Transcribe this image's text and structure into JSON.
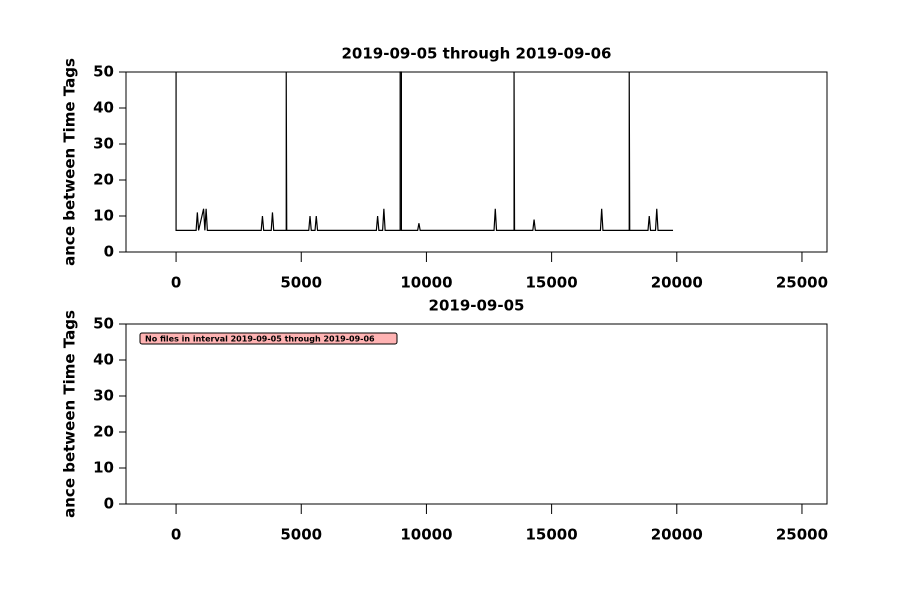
{
  "chart_data": [
    {
      "type": "line",
      "title": "2019-09-05 through 2019-09-06",
      "y_label": "ance between Time Tags",
      "xlim": [
        -2000,
        26000
      ],
      "xticks": [
        0,
        5000,
        10000,
        15000,
        20000,
        25000
      ],
      "ylim": [
        0,
        50
      ],
      "yticks": [
        0,
        10,
        20,
        30,
        40,
        50
      ],
      "series": [
        {
          "color": "#000000",
          "x": [
            0,
            0,
            800,
            850,
            900,
            1100,
            1150,
            1200,
            1250,
            3400,
            3450,
            3500,
            3800,
            3850,
            3900,
            4400,
            4400,
            4420,
            5300,
            5350,
            5400,
            5550,
            5600,
            5650,
            8000,
            8050,
            8100,
            8250,
            8300,
            8350,
            8950,
            8950,
            9000,
            9000,
            9650,
            9700,
            9750,
            12700,
            12750,
            12800,
            13500,
            13500,
            13520,
            14250,
            14300,
            14350,
            16950,
            17000,
            17050,
            18100,
            18100,
            18120,
            18850,
            18900,
            18950,
            19150,
            19200,
            19250,
            19850
          ],
          "values": [
            50,
            6,
            6,
            11,
            6,
            12,
            6,
            12,
            6,
            6,
            10,
            6,
            6,
            11,
            6,
            6,
            50,
            6,
            6,
            10,
            6,
            6,
            10,
            6,
            6,
            10,
            6,
            6,
            12,
            6,
            6,
            50,
            50,
            6,
            6,
            8,
            6,
            6,
            12,
            6,
            6,
            50,
            6,
            6,
            9,
            6,
            6,
            12,
            6,
            6,
            50,
            6,
            6,
            10,
            6,
            6,
            12,
            6,
            6
          ]
        }
      ]
    },
    {
      "type": "empty",
      "title": "2019-09-05",
      "y_label": "ance between Time Tags",
      "annotation": "No files in interval 2019-09-05 through 2019-09-06",
      "xlim": [
        -2000,
        26000
      ],
      "xticks": [
        0,
        5000,
        10000,
        15000,
        20000,
        25000
      ],
      "ylim": [
        0,
        50
      ],
      "yticks": [
        0,
        10,
        20,
        30,
        40,
        50
      ]
    }
  ]
}
